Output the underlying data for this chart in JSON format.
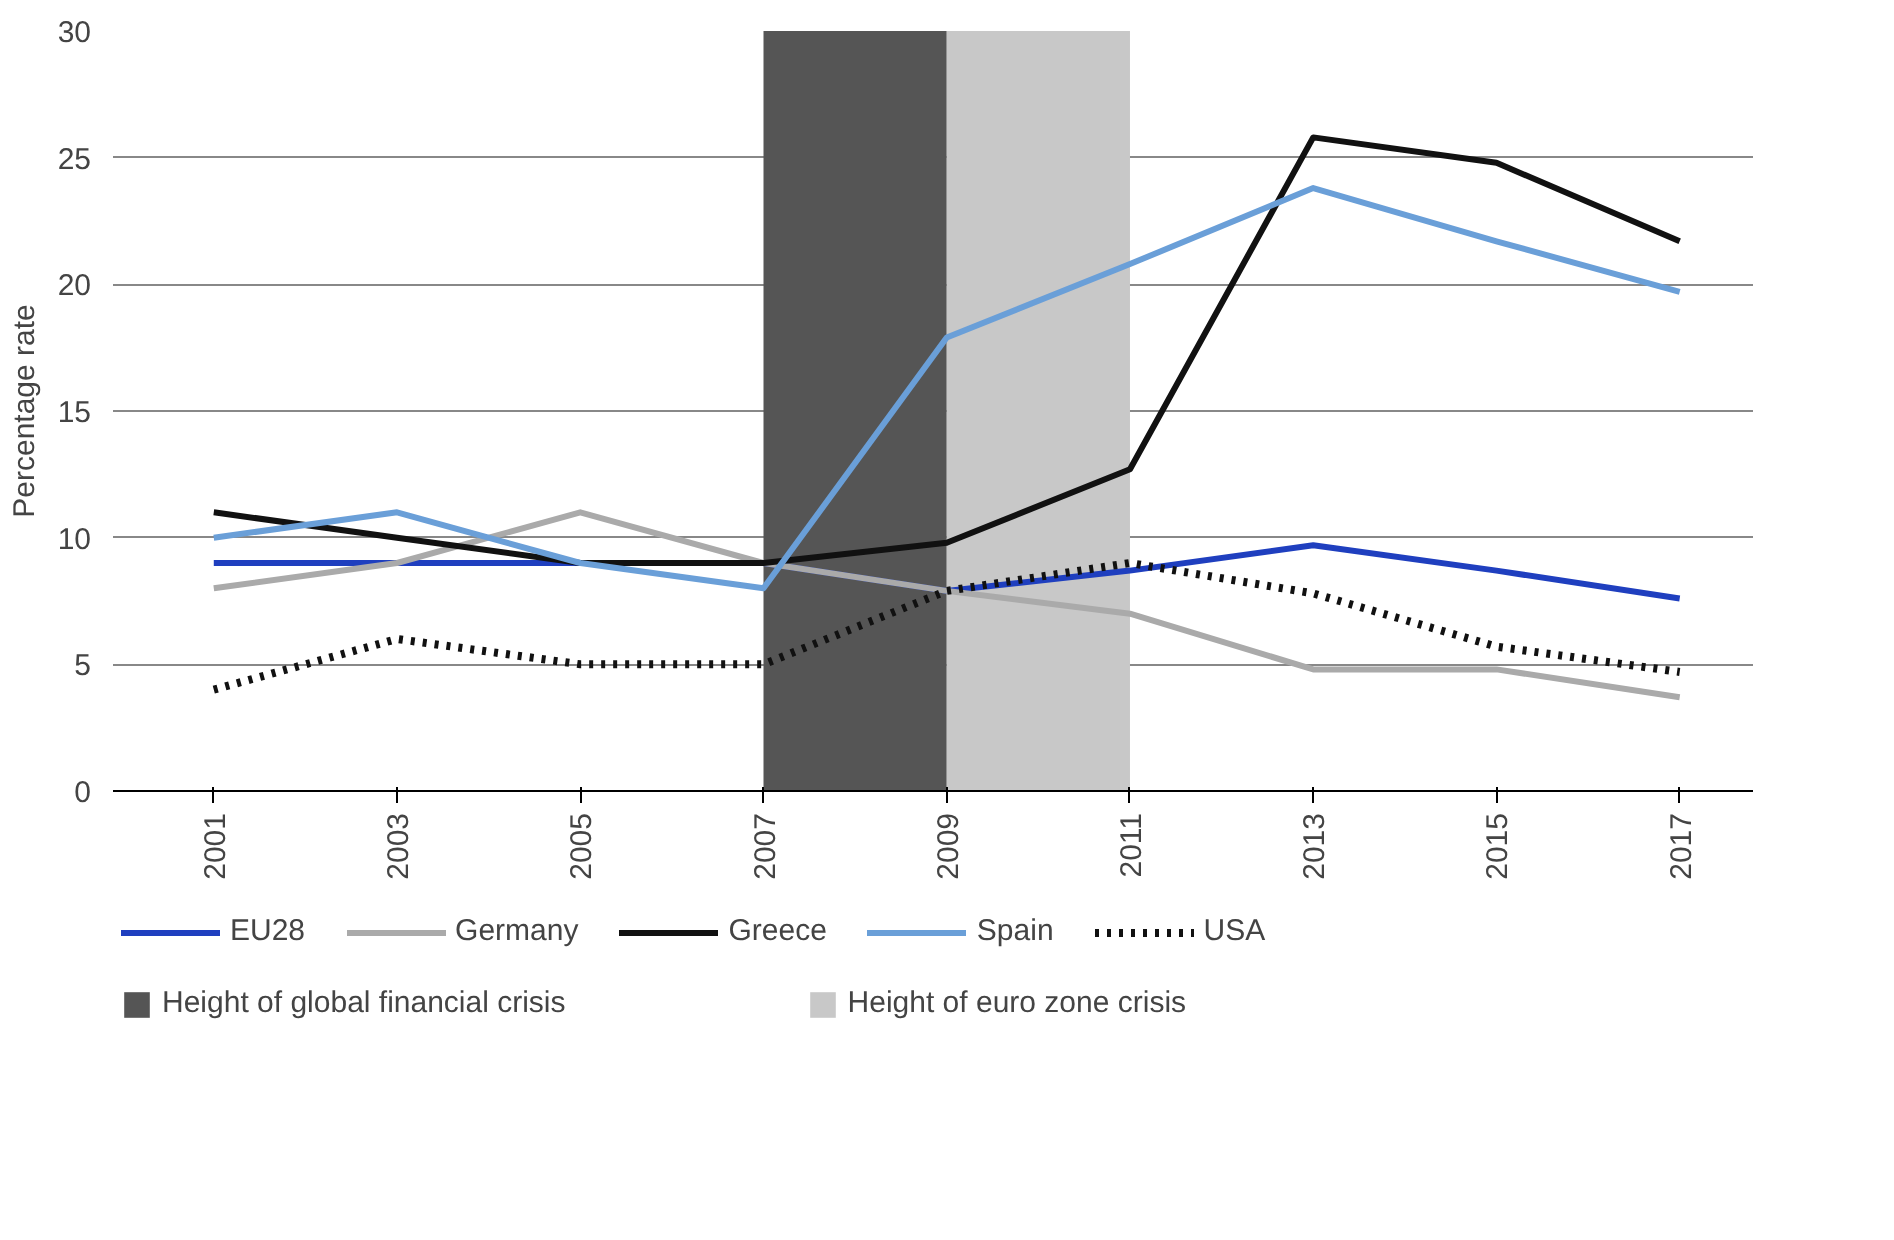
{
  "chart_data": {
    "type": "line",
    "ylabel": "Percentage rate",
    "x": [
      2001,
      2003,
      2005,
      2007,
      2009,
      2011,
      2013,
      2015,
      2017
    ],
    "series": [
      {
        "name": "EU28",
        "color": "#1f3fbf",
        "values": [
          9,
          9,
          9,
          9,
          7.9,
          8.7,
          9.7,
          8.7,
          7.6
        ]
      },
      {
        "name": "Germany",
        "color": "#aaaaaa",
        "values": [
          8,
          9,
          11,
          9,
          7.9,
          7,
          4.8,
          4.8,
          3.7
        ]
      },
      {
        "name": "Greece",
        "color": "#111111",
        "values": [
          11,
          10,
          9,
          9,
          9.8,
          12.7,
          25.8,
          24.8,
          21.7
        ]
      },
      {
        "name": "Spain",
        "color": "#6a9fd8",
        "values": [
          10,
          11,
          9,
          8,
          17.9,
          20.8,
          23.8,
          21.7,
          19.7
        ]
      },
      {
        "name": "USA",
        "color": "#111111",
        "line_style": "dotted",
        "values": [
          4,
          6,
          5,
          5,
          7.9,
          9,
          7.8,
          5.7,
          4.7
        ]
      }
    ],
    "bands": [
      {
        "axis": "x",
        "from": 2007,
        "to": 2009,
        "label": "Height of global financial crisis",
        "color": "#555555"
      },
      {
        "axis": "x",
        "from": 2009,
        "to": 2011,
        "label": "Height of euro zone crisis",
        "color": "#c8c8c8"
      }
    ],
    "xlim": [
      1999.9,
      2017.8
    ],
    "xticks": [
      2001,
      2003,
      2005,
      2007,
      2009,
      2011,
      2013,
      2015,
      2017
    ],
    "ylim": [
      0,
      30
    ],
    "yticks": [
      0,
      5,
      10,
      15,
      20,
      25,
      30
    ],
    "grid": "y",
    "legend": "bottom",
    "line_style": "solid",
    "marker": "none"
  }
}
